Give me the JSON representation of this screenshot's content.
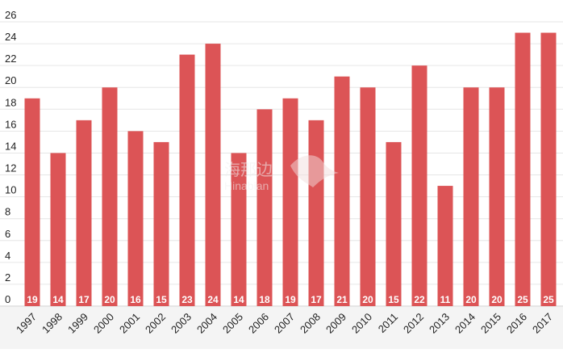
{
  "chart_data": {
    "type": "bar",
    "title": "",
    "xlabel": "",
    "ylabel": "",
    "categories": [
      "1997",
      "1998",
      "1999",
      "2000",
      "2001",
      "2002",
      "2003",
      "2004",
      "2005",
      "2006",
      "2007",
      "2008",
      "2009",
      "2010",
      "2011",
      "2012",
      "2013",
      "2014",
      "2015",
      "2016",
      "2017"
    ],
    "values": [
      19,
      14,
      17,
      20,
      16,
      15,
      23,
      24,
      14,
      18,
      19,
      17,
      21,
      20,
      15,
      22,
      11,
      20,
      20,
      25,
      25
    ],
    "ylim": [
      0,
      26
    ],
    "yticks": [
      0,
      2,
      4,
      6,
      8,
      10,
      12,
      14,
      16,
      18,
      20,
      22,
      24,
      26
    ],
    "grid": true,
    "legend": "none",
    "data_labels": "inside-bottom",
    "colors": {
      "bar": "#dc5456",
      "label": "#ffffff",
      "grid": "#e6e6e6"
    }
  },
  "watermark": {
    "brand": "海那边",
    "brand_latin": "Hinabian"
  }
}
